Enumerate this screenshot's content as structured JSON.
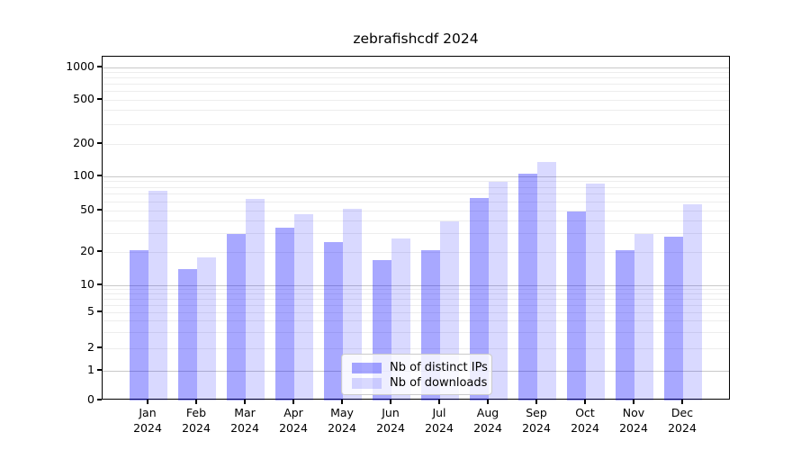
{
  "chart_data": {
    "type": "bar",
    "title": "zebrafishcdf 2024",
    "categories": [
      "Jan",
      "Feb",
      "Mar",
      "Apr",
      "May",
      "Jun",
      "Jul",
      "Aug",
      "Sep",
      "Oct",
      "Nov",
      "Dec"
    ],
    "year_label": "2024",
    "series": [
      {
        "name": "Nb of distinct IPs",
        "color": "rgba(0,0,255,0.34)",
        "values": [
          21,
          14,
          30,
          34,
          25,
          17,
          21,
          65,
          105,
          49,
          21,
          28
        ]
      },
      {
        "name": "Nb of downloads",
        "color": "rgba(0,0,255,0.15)",
        "values": [
          75,
          18,
          63,
          46,
          52,
          27,
          39,
          90,
          135,
          87,
          30,
          57
        ]
      }
    ],
    "yscale": "symlog",
    "yticks": [
      0,
      1,
      2,
      5,
      10,
      20,
      50,
      100,
      200,
      500,
      1000
    ],
    "ylim": [
      0,
      1300
    ],
    "grid": "horizontal major + log minor",
    "legend_position": "lower center"
  },
  "colors": {
    "bar_distinct_ips": "rgba(0,0,255,0.34)",
    "bar_downloads": "rgba(0,0,255,0.15)",
    "major_grid": "#c9c9c9",
    "minor_grid": "#ededed",
    "axis_frame": "#000000",
    "legend_border": "#cbcbcb"
  }
}
